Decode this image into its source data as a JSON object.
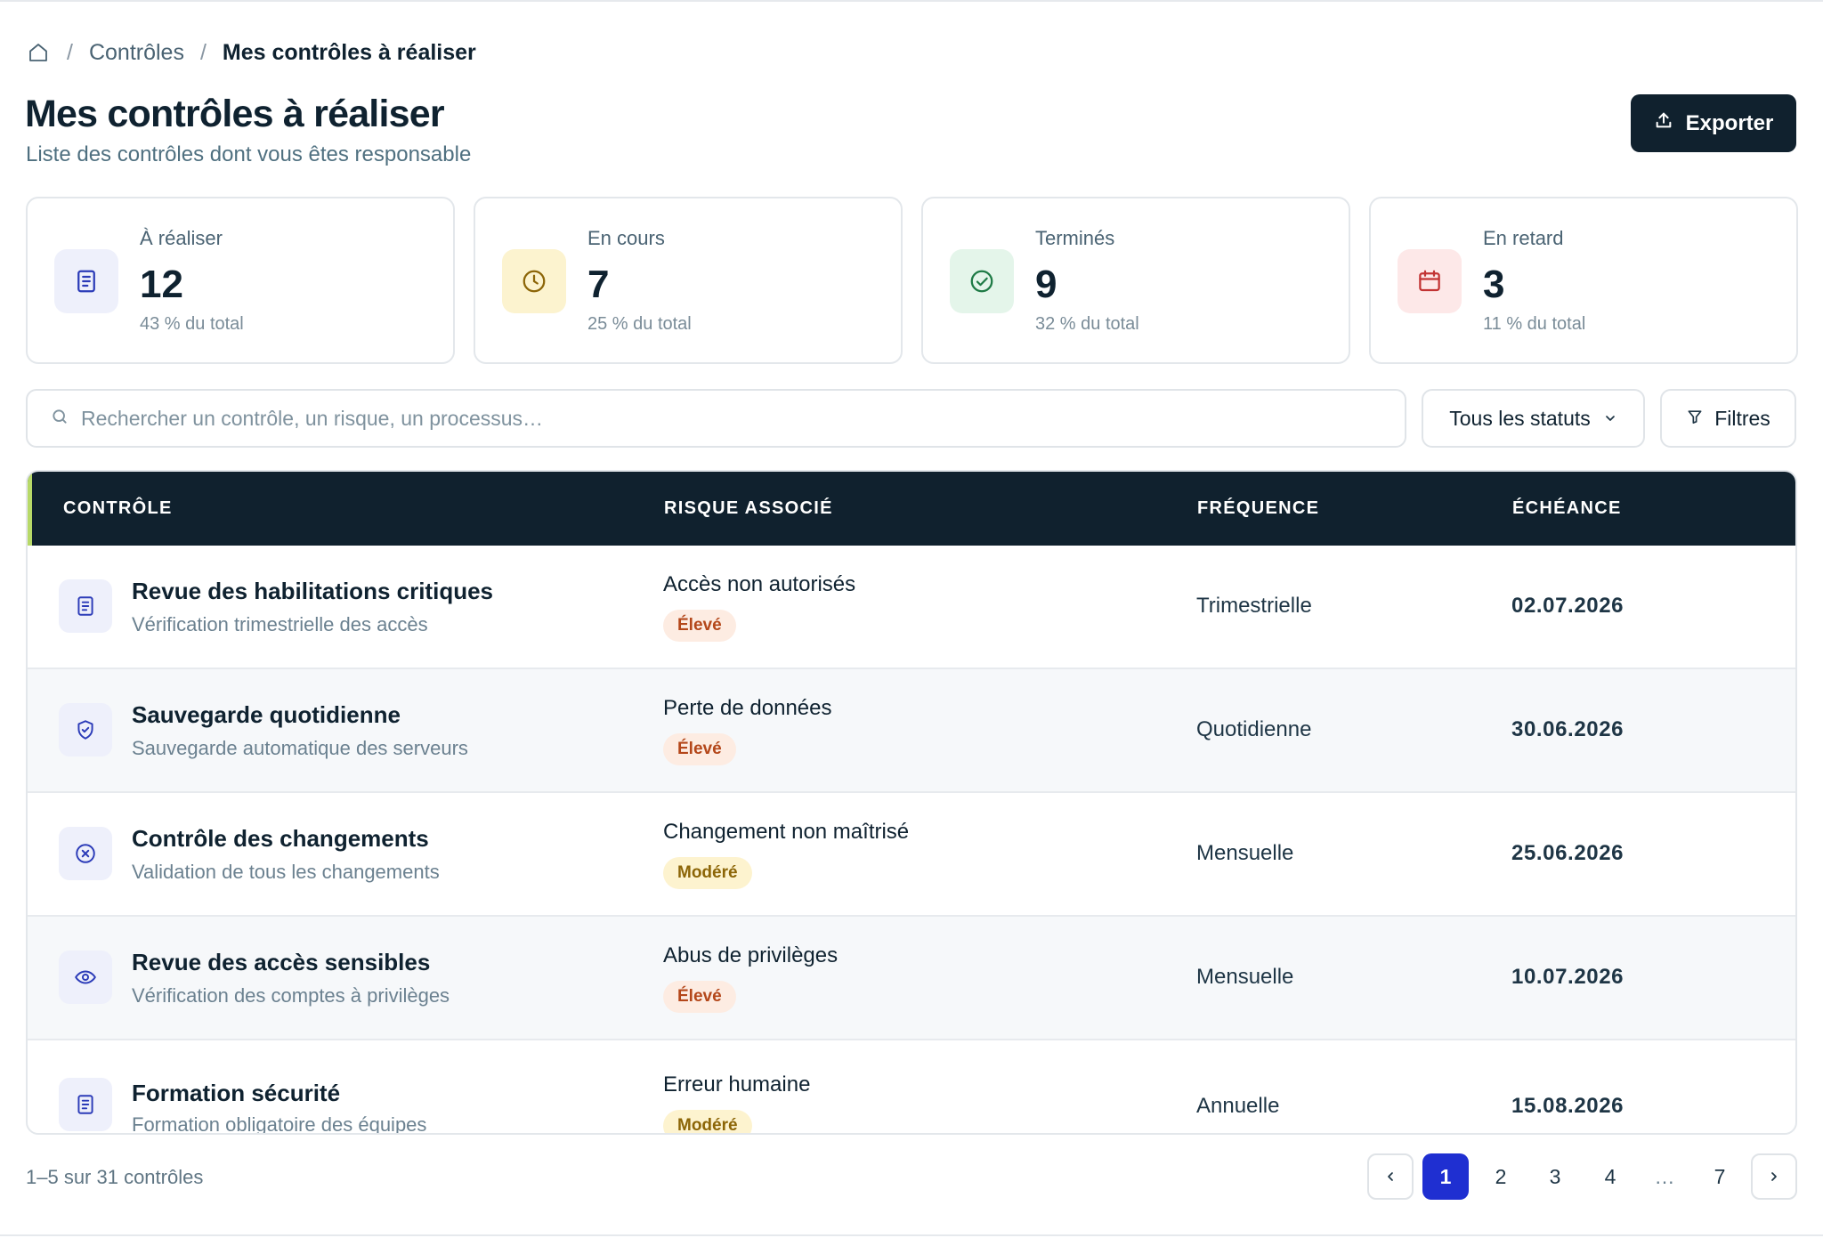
{
  "breadcrumb": {
    "home_icon": "home-icon",
    "separator": "/",
    "parent": "Contrôles",
    "current": "Mes contrôles à réaliser"
  },
  "header": {
    "title": "Mes contrôles à réaliser",
    "subtitle": "Liste des contrôles dont vous êtes responsable",
    "export_label": "Exporter",
    "export_icon": "upload-icon"
  },
  "stats": [
    {
      "label": "À réaliser",
      "value": "12",
      "pct": "43 % du total",
      "icon": "document-icon",
      "icon_bg": "#eef0fb",
      "icon_color": "#2b3bb8"
    },
    {
      "label": "En cours",
      "value": "7",
      "pct": "25 % du total",
      "icon": "clock-icon",
      "icon_bg": "#fcf3cf",
      "icon_color": "#8c6507"
    },
    {
      "label": "Terminés",
      "value": "9",
      "pct": "32 % du total",
      "icon": "check-circle-icon",
      "icon_bg": "#e4f5ea",
      "icon_color": "#1e7a45"
    },
    {
      "label": "En retard",
      "value": "3",
      "pct": "11 % du total",
      "icon": "calendar-icon",
      "icon_bg": "#fde8e8",
      "icon_color": "#c23333"
    }
  ],
  "search": {
    "placeholder": "Rechercher un contrôle, un risque, un processus…",
    "value": ""
  },
  "status_filter": {
    "selected": "Tous les statuts"
  },
  "filters_label": "Filtres",
  "table": {
    "columns": [
      "CONTRÔLE",
      "RISQUE ASSOCIÉ",
      "FRÉQUENCE",
      "ÉCHÉANCE"
    ],
    "rows": [
      {
        "title": "Revue des habilitations critiques",
        "subtitle": "Vérification trimestrielle des accès",
        "risk": "Accès non autorisés",
        "level": "Élevé",
        "frequency": "Trimestrielle",
        "due": "02.07.2026",
        "icon": "document-icon"
      },
      {
        "title": "Sauvegarde quotidienne",
        "subtitle": "Sauvegarde automatique des serveurs",
        "risk": "Perte de données",
        "level": "Élevé",
        "frequency": "Quotidienne",
        "due": "30.06.2026",
        "icon": "shield-check-icon"
      },
      {
        "title": "Contrôle des changements",
        "subtitle": "Validation de tous les changements",
        "risk": "Changement non maîtrisé",
        "level": "Modéré",
        "frequency": "Mensuelle",
        "due": "25.06.2026",
        "icon": "x-circle-icon"
      },
      {
        "title": "Revue des accès sensibles",
        "subtitle": "Vérification des comptes à privilèges",
        "risk": "Abus de privilèges",
        "level": "Élevé",
        "frequency": "Mensuelle",
        "due": "10.07.2026",
        "icon": "eye-icon"
      },
      {
        "title": "Formation sécurité",
        "subtitle": "Formation obligatoire des équipes",
        "risk": "Erreur humaine",
        "level": "Modéré",
        "frequency": "Annuelle",
        "due": "15.08.2026",
        "icon": "document-icon"
      }
    ]
  },
  "pagination": {
    "summary": "1–5 sur 31 contrôles",
    "pages": [
      "1",
      "2",
      "3",
      "4",
      "…",
      "7"
    ],
    "current": "1"
  },
  "colors": {
    "primary_dark": "#10212e",
    "accent_blue": "#1f2fd1",
    "header_accent": "#b7d968",
    "badge_high_bg": "#fdece2",
    "badge_high_text": "#b4471a",
    "badge_mod_bg": "#fdf3cf",
    "badge_mod_text": "#8c6507"
  }
}
